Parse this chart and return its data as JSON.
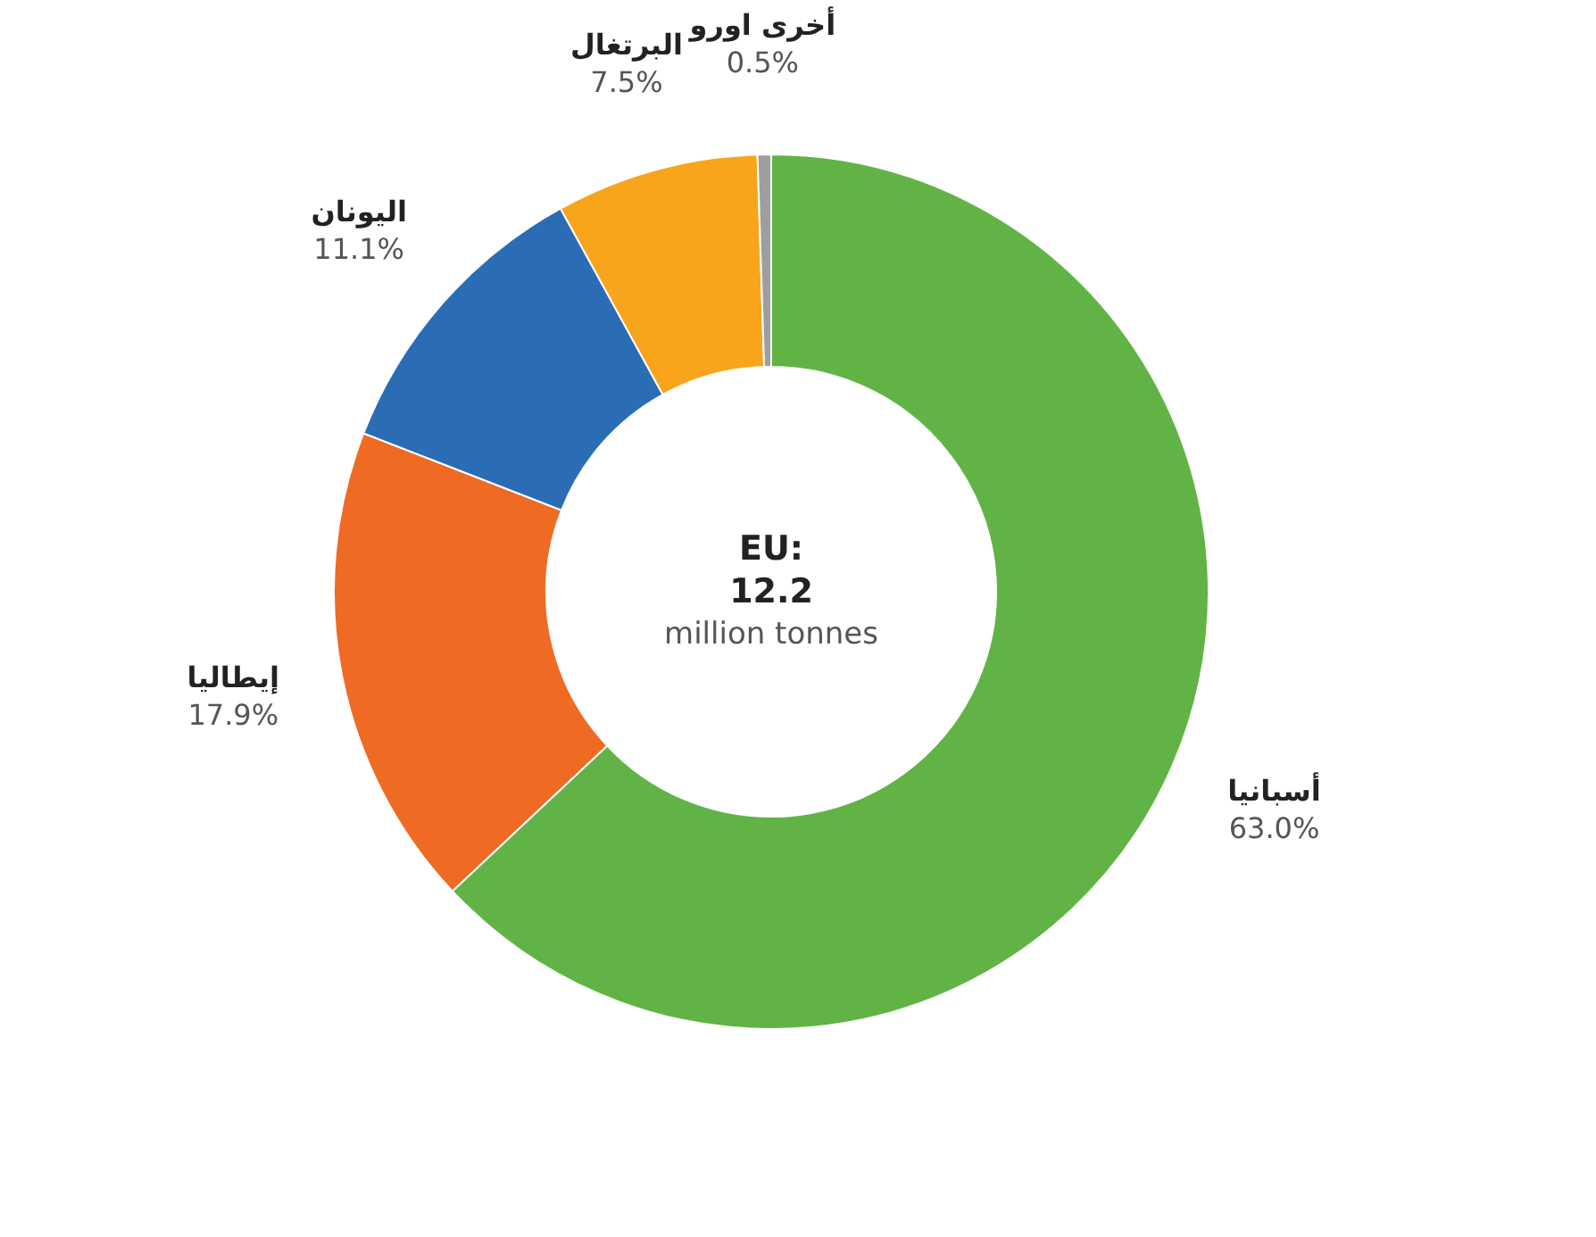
{
  "chart_data": {
    "type": "donut",
    "categories": [
      "أسبانيا",
      "إيطاليا",
      "اليونان",
      "البرتغال",
      "أخرى اورو"
    ],
    "values": [
      63.0,
      17.9,
      11.1,
      7.5,
      0.5
    ],
    "colors": [
      "#62b346",
      "#ef6a22",
      "#2a6db5",
      "#f8a51c",
      "#9e9e9e"
    ],
    "value_labels": [
      "63.0%",
      "17.9%",
      "11.1%",
      "7.5%",
      "0.5%"
    ],
    "annotations": [
      "EU:",
      "12.2",
      "million tonnes"
    ]
  }
}
